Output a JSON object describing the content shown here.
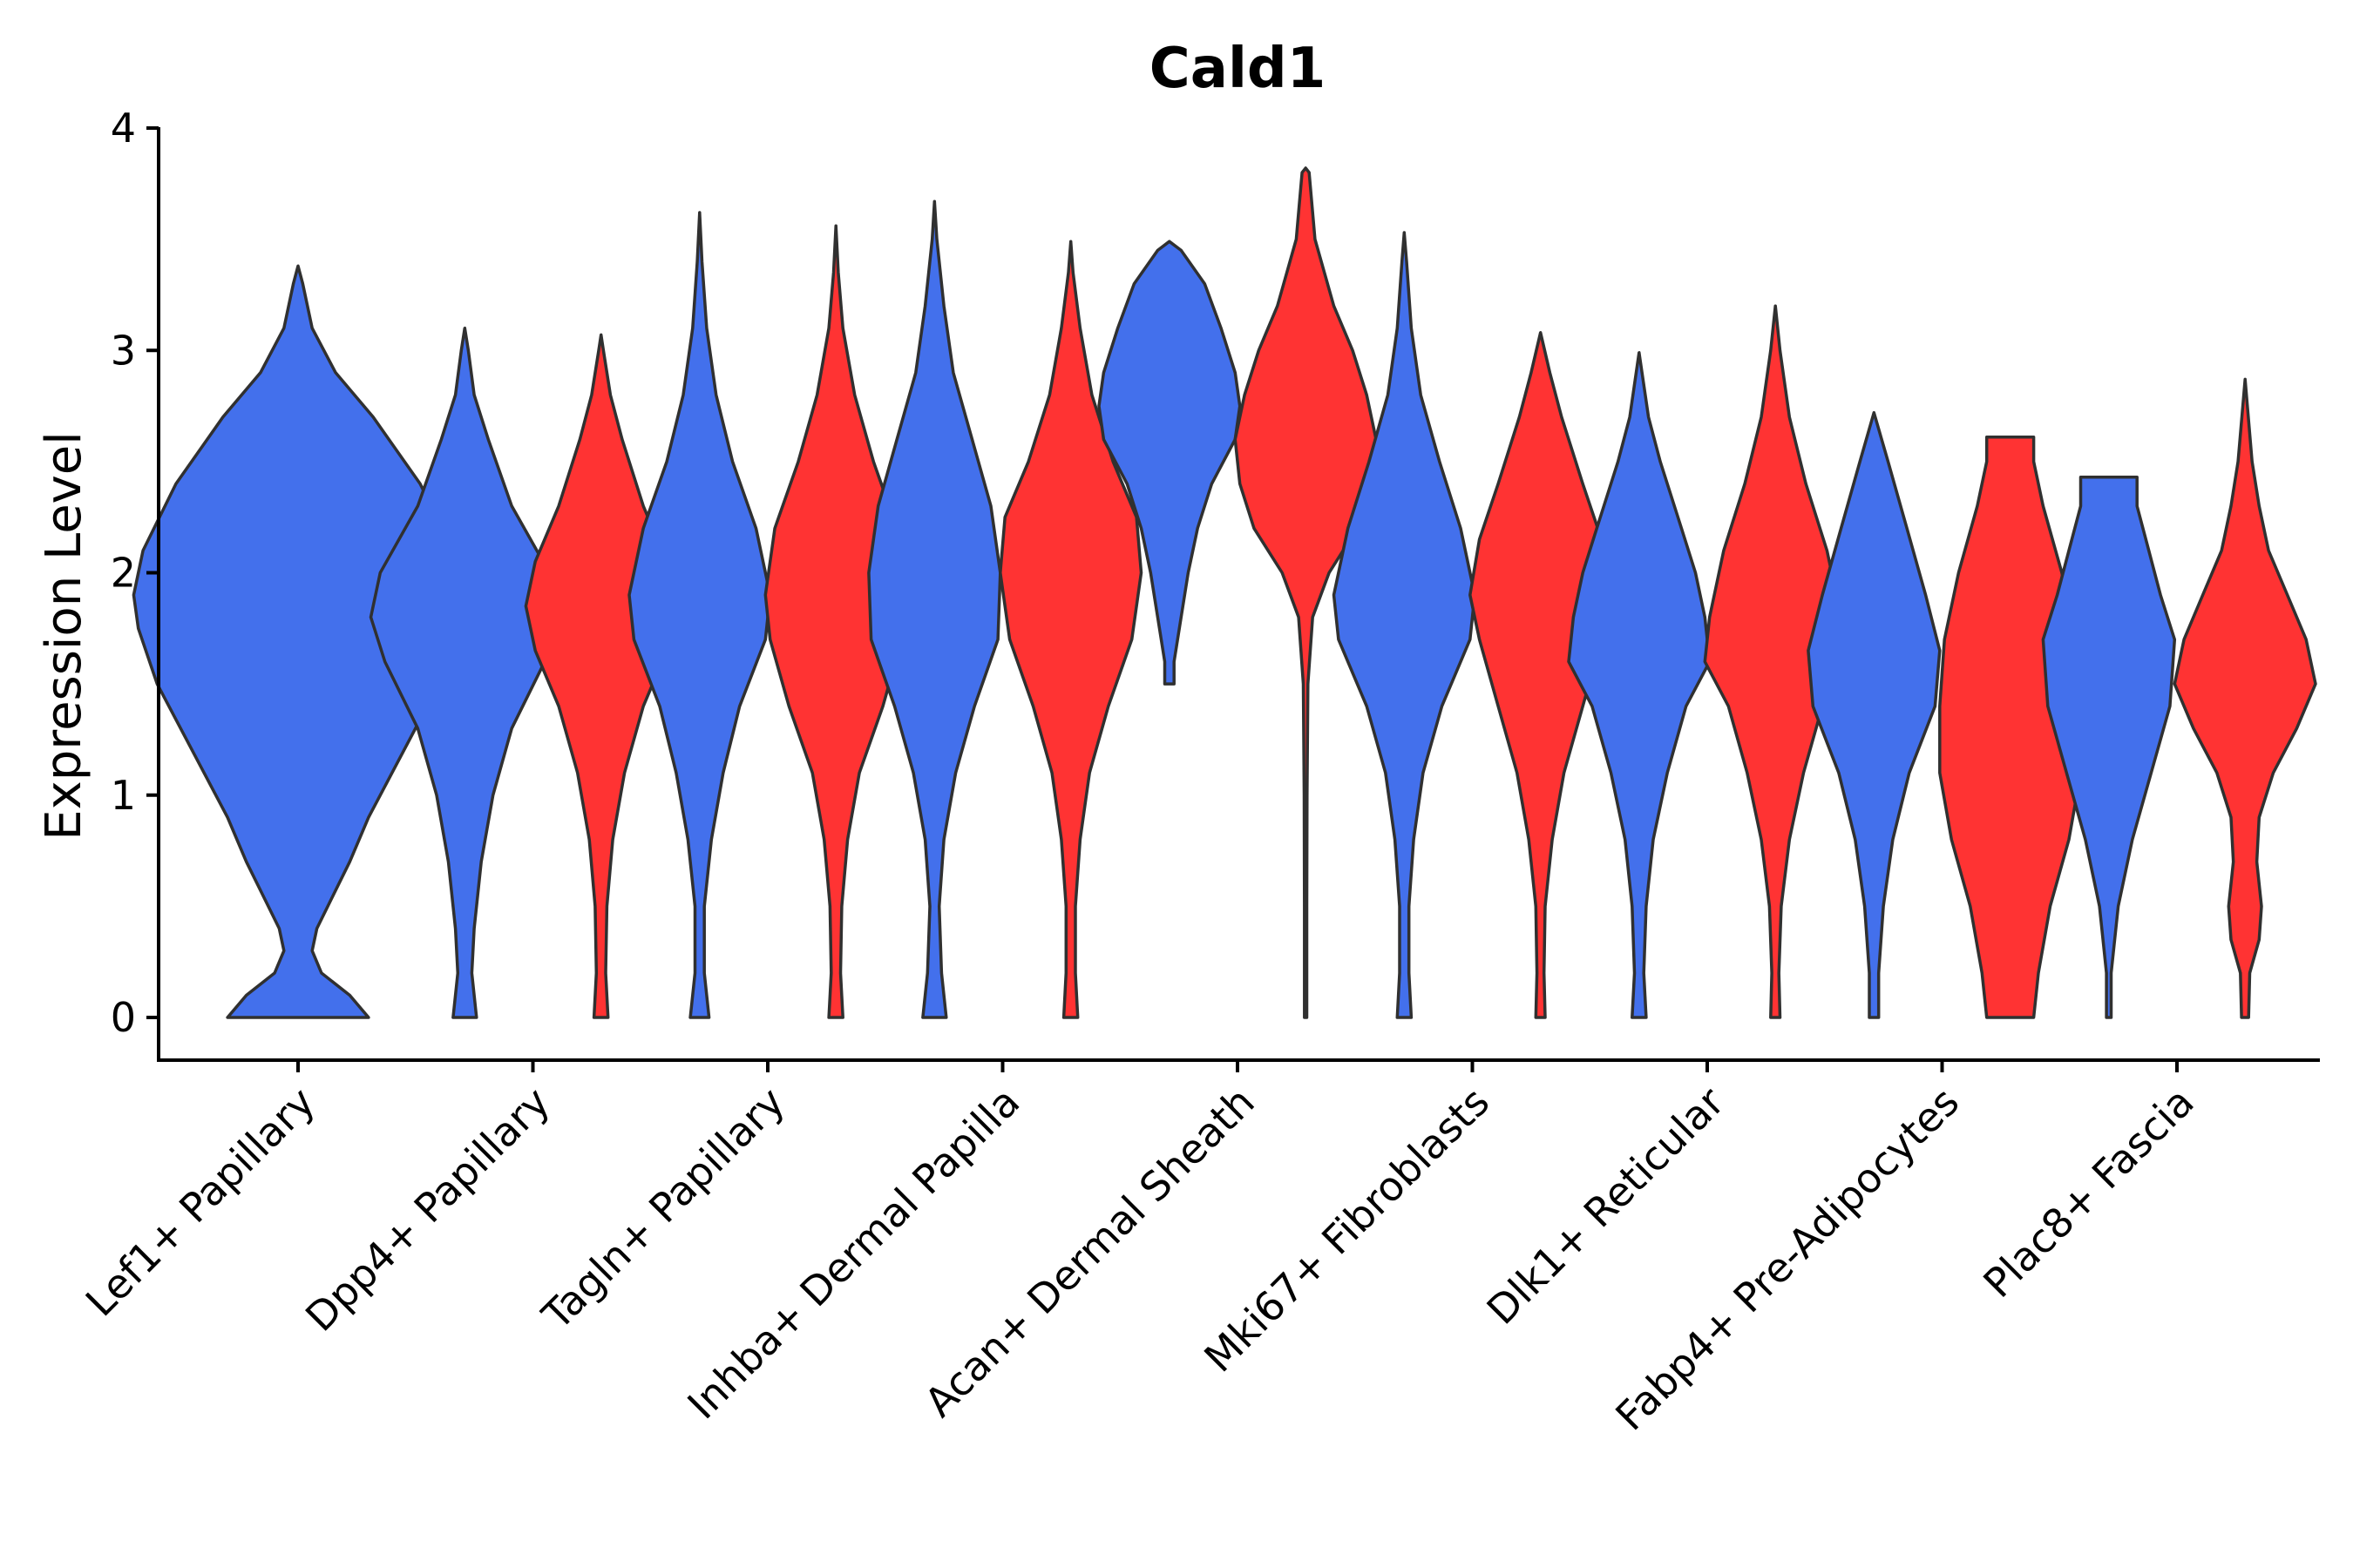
{
  "chart_data": {
    "type": "violin",
    "title": "Cald1",
    "xlabel": "",
    "ylabel": "Expression Level",
    "ylim": [
      -0.2,
      4.0
    ],
    "yticks": [
      "0",
      "1",
      "2",
      "3",
      "4"
    ],
    "categories": [
      "Lef1+ Papillary",
      "Dpp4+ Papillary",
      "Tagln+ Papillary",
      "Inhba+ Dermal Papilla",
      "Acan+ Dermal Sheath",
      "Mki67+ Fibroblasts",
      "Dlk1+ Reticular",
      "Fabp4+ Pre-Adipocytes",
      "Plac8+ Fascia"
    ],
    "colors": {
      "blue": "#4370EC",
      "red": "#FF3333",
      "outline": "#303030"
    },
    "violins": [
      {
        "category": 0,
        "color": "blue",
        "center": 0,
        "range": [
          0,
          3.38
        ],
        "profile": [
          [
            0,
            0.3
          ],
          [
            0.1,
            0.22
          ],
          [
            0.2,
            0.1
          ],
          [
            0.3,
            0.06
          ],
          [
            0.4,
            0.08
          ],
          [
            0.55,
            0.15
          ],
          [
            0.7,
            0.22
          ],
          [
            0.9,
            0.3
          ],
          [
            1.2,
            0.45
          ],
          [
            1.5,
            0.6
          ],
          [
            1.75,
            0.68
          ],
          [
            1.9,
            0.7
          ],
          [
            2.1,
            0.66
          ],
          [
            2.4,
            0.52
          ],
          [
            2.7,
            0.32
          ],
          [
            2.9,
            0.16
          ],
          [
            3.1,
            0.06
          ],
          [
            3.3,
            0.02
          ],
          [
            3.38,
            0
          ]
        ]
      },
      {
        "category": 1,
        "color": "blue",
        "center": -0.29,
        "range": [
          0,
          3.1
        ],
        "profile": [
          [
            0,
            0.05
          ],
          [
            0.2,
            0.03
          ],
          [
            0.4,
            0.04
          ],
          [
            0.7,
            0.07
          ],
          [
            1.0,
            0.12
          ],
          [
            1.3,
            0.2
          ],
          [
            1.6,
            0.34
          ],
          [
            1.8,
            0.4
          ],
          [
            2.0,
            0.36
          ],
          [
            2.3,
            0.2
          ],
          [
            2.6,
            0.1
          ],
          [
            2.8,
            0.04
          ],
          [
            3.0,
            0.015
          ],
          [
            3.1,
            0
          ]
        ]
      },
      {
        "category": 1,
        "color": "red",
        "center": 0.29,
        "range": [
          0,
          3.07
        ],
        "profile": [
          [
            0,
            0.03
          ],
          [
            0.2,
            0.02
          ],
          [
            0.5,
            0.025
          ],
          [
            0.8,
            0.05
          ],
          [
            1.1,
            0.1
          ],
          [
            1.4,
            0.18
          ],
          [
            1.65,
            0.28
          ],
          [
            1.85,
            0.32
          ],
          [
            2.05,
            0.28
          ],
          [
            2.3,
            0.18
          ],
          [
            2.6,
            0.09
          ],
          [
            2.8,
            0.04
          ],
          [
            3.0,
            0.01
          ],
          [
            3.07,
            0
          ]
        ]
      },
      {
        "category": 2,
        "color": "blue",
        "center": -0.29,
        "range": [
          0,
          3.62
        ],
        "profile": [
          [
            0,
            0.04
          ],
          [
            0.2,
            0.02
          ],
          [
            0.5,
            0.02
          ],
          [
            0.8,
            0.05
          ],
          [
            1.1,
            0.1
          ],
          [
            1.4,
            0.17
          ],
          [
            1.7,
            0.28
          ],
          [
            1.9,
            0.3
          ],
          [
            2.2,
            0.24
          ],
          [
            2.5,
            0.14
          ],
          [
            2.8,
            0.07
          ],
          [
            3.1,
            0.03
          ],
          [
            3.4,
            0.01
          ],
          [
            3.62,
            0
          ]
        ]
      },
      {
        "category": 2,
        "color": "red",
        "center": 0.29,
        "range": [
          0,
          3.56
        ],
        "profile": [
          [
            0,
            0.03
          ],
          [
            0.2,
            0.02
          ],
          [
            0.5,
            0.025
          ],
          [
            0.8,
            0.05
          ],
          [
            1.1,
            0.1
          ],
          [
            1.4,
            0.2
          ],
          [
            1.7,
            0.28
          ],
          [
            1.9,
            0.3
          ],
          [
            2.2,
            0.26
          ],
          [
            2.5,
            0.16
          ],
          [
            2.8,
            0.08
          ],
          [
            3.1,
            0.03
          ],
          [
            3.35,
            0.01
          ],
          [
            3.56,
            0
          ]
        ]
      },
      {
        "category": 3,
        "color": "blue",
        "center": -0.29,
        "range": [
          0,
          3.67
        ],
        "profile": [
          [
            0,
            0.05
          ],
          [
            0.2,
            0.03
          ],
          [
            0.5,
            0.02
          ],
          [
            0.8,
            0.04
          ],
          [
            1.1,
            0.09
          ],
          [
            1.4,
            0.17
          ],
          [
            1.7,
            0.27
          ],
          [
            2.0,
            0.28
          ],
          [
            2.3,
            0.24
          ],
          [
            2.6,
            0.16
          ],
          [
            2.9,
            0.08
          ],
          [
            3.2,
            0.04
          ],
          [
            3.5,
            0.01
          ],
          [
            3.67,
            0
          ]
        ]
      },
      {
        "category": 3,
        "color": "red",
        "center": 0.29,
        "range": [
          0,
          3.49
        ],
        "profile": [
          [
            0,
            0.03
          ],
          [
            0.2,
            0.02
          ],
          [
            0.5,
            0.02
          ],
          [
            0.8,
            0.04
          ],
          [
            1.1,
            0.08
          ],
          [
            1.4,
            0.16
          ],
          [
            1.7,
            0.26
          ],
          [
            2.0,
            0.3
          ],
          [
            2.25,
            0.28
          ],
          [
            2.5,
            0.18
          ],
          [
            2.8,
            0.09
          ],
          [
            3.1,
            0.04
          ],
          [
            3.35,
            0.01
          ],
          [
            3.49,
            0
          ]
        ]
      },
      {
        "category": 4,
        "color": "blue",
        "center": -0.29,
        "range": [
          1.5,
          3.49
        ],
        "profile": [
          [
            1.5,
            0.02
          ],
          [
            1.6,
            0.02
          ],
          [
            1.8,
            0.05
          ],
          [
            2.0,
            0.08
          ],
          [
            2.2,
            0.12
          ],
          [
            2.4,
            0.18
          ],
          [
            2.6,
            0.28
          ],
          [
            2.75,
            0.3
          ],
          [
            2.9,
            0.28
          ],
          [
            3.1,
            0.22
          ],
          [
            3.3,
            0.15
          ],
          [
            3.45,
            0.05
          ],
          [
            3.49,
            0
          ]
        ]
      },
      {
        "category": 4,
        "color": "red",
        "center": 0.29,
        "range": [
          0,
          3.82
        ],
        "profile": [
          [
            0,
            0.005
          ],
          [
            0.5,
            0.005
          ],
          [
            1.0,
            0.006
          ],
          [
            1.5,
            0.01
          ],
          [
            1.8,
            0.03
          ],
          [
            2.0,
            0.1
          ],
          [
            2.2,
            0.22
          ],
          [
            2.4,
            0.28
          ],
          [
            2.6,
            0.3
          ],
          [
            2.8,
            0.26
          ],
          [
            3.0,
            0.2
          ],
          [
            3.2,
            0.12
          ],
          [
            3.5,
            0.04
          ],
          [
            3.8,
            0.015
          ],
          [
            3.82,
            0
          ]
        ]
      },
      {
        "category": 5,
        "color": "blue",
        "center": -0.29,
        "range": [
          0,
          3.53
        ],
        "profile": [
          [
            0,
            0.03
          ],
          [
            0.2,
            0.02
          ],
          [
            0.5,
            0.02
          ],
          [
            0.8,
            0.04
          ],
          [
            1.1,
            0.08
          ],
          [
            1.4,
            0.16
          ],
          [
            1.7,
            0.28
          ],
          [
            1.9,
            0.3
          ],
          [
            2.2,
            0.24
          ],
          [
            2.5,
            0.15
          ],
          [
            2.8,
            0.07
          ],
          [
            3.1,
            0.03
          ],
          [
            3.4,
            0.01
          ],
          [
            3.53,
            0
          ]
        ]
      },
      {
        "category": 5,
        "color": "red",
        "center": 0.29,
        "range": [
          0,
          3.08
        ],
        "profile": [
          [
            0,
            0.02
          ],
          [
            0.2,
            0.015
          ],
          [
            0.5,
            0.02
          ],
          [
            0.8,
            0.05
          ],
          [
            1.1,
            0.1
          ],
          [
            1.4,
            0.18
          ],
          [
            1.7,
            0.26
          ],
          [
            1.9,
            0.3
          ],
          [
            2.15,
            0.26
          ],
          [
            2.4,
            0.18
          ],
          [
            2.7,
            0.09
          ],
          [
            2.9,
            0.04
          ],
          [
            3.08,
            0
          ]
        ]
      },
      {
        "category": 6,
        "color": "blue",
        "center": -0.29,
        "range": [
          0,
          2.99
        ],
        "profile": [
          [
            0,
            0.03
          ],
          [
            0.2,
            0.02
          ],
          [
            0.5,
            0.03
          ],
          [
            0.8,
            0.06
          ],
          [
            1.1,
            0.12
          ],
          [
            1.4,
            0.2
          ],
          [
            1.6,
            0.3
          ],
          [
            1.8,
            0.28
          ],
          [
            2.0,
            0.24
          ],
          [
            2.2,
            0.18
          ],
          [
            2.5,
            0.09
          ],
          [
            2.7,
            0.04
          ],
          [
            2.99,
            0
          ]
        ]
      },
      {
        "category": 6,
        "color": "red",
        "center": 0.29,
        "range": [
          0,
          3.2
        ],
        "profile": [
          [
            0,
            0.02
          ],
          [
            0.2,
            0.015
          ],
          [
            0.5,
            0.025
          ],
          [
            0.8,
            0.06
          ],
          [
            1.1,
            0.12
          ],
          [
            1.4,
            0.2
          ],
          [
            1.6,
            0.3
          ],
          [
            1.8,
            0.28
          ],
          [
            2.1,
            0.22
          ],
          [
            2.4,
            0.13
          ],
          [
            2.7,
            0.06
          ],
          [
            3.0,
            0.02
          ],
          [
            3.2,
            0
          ]
        ]
      },
      {
        "category": 7,
        "color": "blue",
        "center": -0.29,
        "range": [
          0,
          2.72
        ],
        "profile": [
          [
            0,
            0.02
          ],
          [
            0.2,
            0.02
          ],
          [
            0.5,
            0.04
          ],
          [
            0.8,
            0.08
          ],
          [
            1.1,
            0.15
          ],
          [
            1.4,
            0.26
          ],
          [
            1.65,
            0.28
          ],
          [
            1.9,
            0.22
          ],
          [
            2.2,
            0.14
          ],
          [
            2.5,
            0.06
          ],
          [
            2.72,
            0
          ]
        ]
      },
      {
        "category": 7,
        "color": "red",
        "center": 0.29,
        "range": [
          0,
          2.61
        ],
        "profile": [
          [
            0,
            0.1
          ],
          [
            0.2,
            0.12
          ],
          [
            0.5,
            0.17
          ],
          [
            0.8,
            0.25
          ],
          [
            1.1,
            0.3
          ],
          [
            1.4,
            0.3
          ],
          [
            1.7,
            0.28
          ],
          [
            2.0,
            0.22
          ],
          [
            2.3,
            0.14
          ],
          [
            2.5,
            0.1
          ],
          [
            2.61,
            0.1
          ]
        ]
      },
      {
        "category": 8,
        "color": "blue",
        "center": -0.29,
        "range": [
          0,
          2.43
        ],
        "profile": [
          [
            0,
            0.01
          ],
          [
            0.2,
            0.01
          ],
          [
            0.5,
            0.04
          ],
          [
            0.8,
            0.1
          ],
          [
            1.1,
            0.18
          ],
          [
            1.4,
            0.26
          ],
          [
            1.7,
            0.28
          ],
          [
            1.9,
            0.22
          ],
          [
            2.1,
            0.17
          ],
          [
            2.3,
            0.12
          ],
          [
            2.43,
            0.12
          ]
        ]
      },
      {
        "category": 8,
        "color": "red",
        "center": 0.29,
        "range": [
          0,
          2.87
        ],
        "profile": [
          [
            0,
            0.015
          ],
          [
            0.2,
            0.02
          ],
          [
            0.35,
            0.06
          ],
          [
            0.5,
            0.07
          ],
          [
            0.7,
            0.05
          ],
          [
            0.9,
            0.06
          ],
          [
            1.1,
            0.12
          ],
          [
            1.3,
            0.22
          ],
          [
            1.5,
            0.3
          ],
          [
            1.7,
            0.26
          ],
          [
            1.9,
            0.18
          ],
          [
            2.1,
            0.1
          ],
          [
            2.3,
            0.06
          ],
          [
            2.5,
            0.03
          ],
          [
            2.87,
            0
          ]
        ]
      }
    ]
  }
}
